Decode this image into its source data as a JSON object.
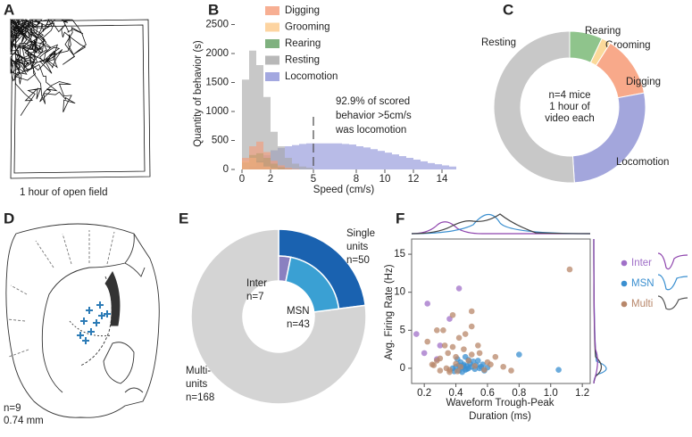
{
  "panels": {
    "a": {
      "letter": "A",
      "caption": "1 hour of open field"
    },
    "d": {
      "letter": "D",
      "lines": [
        "n=9",
        "0.74 mm"
      ]
    }
  },
  "chart_data": [
    {
      "type": "histogram",
      "letter": "B",
      "xlabel": "Speed (cm/s)",
      "ylabel": "Quantity of behavior (s)",
      "bins": [
        0,
        0.5,
        1,
        1.5,
        2,
        2.5,
        3,
        3.5,
        4,
        4.5,
        5,
        5.5,
        6,
        6.5,
        7,
        7.5,
        8,
        8.5,
        9,
        9.5,
        10,
        10.5,
        11,
        11.5,
        12,
        12.5,
        13,
        13.5,
        14,
        14.5,
        15
      ],
      "series": [
        {
          "name": "Digging",
          "color": "#f59b78",
          "values": [
            200,
            400,
            480,
            300,
            150,
            70,
            30,
            10,
            0,
            0,
            0,
            0,
            0,
            0,
            0,
            0,
            0,
            0,
            0,
            0,
            0,
            0,
            0,
            0,
            0,
            0,
            0,
            0,
            0,
            0
          ]
        },
        {
          "name": "Grooming",
          "color": "#fcc98a",
          "values": [
            150,
            200,
            120,
            50,
            20,
            0,
            0,
            0,
            0,
            0,
            0,
            0,
            0,
            0,
            0,
            0,
            0,
            0,
            0,
            0,
            0,
            0,
            0,
            0,
            0,
            0,
            0,
            0,
            0,
            0
          ]
        },
        {
          "name": "Rearing",
          "color": "#5f9e5f",
          "values": [
            120,
            250,
            280,
            200,
            100,
            40,
            10,
            0,
            0,
            0,
            0,
            0,
            0,
            0,
            0,
            0,
            0,
            0,
            0,
            0,
            0,
            0,
            0,
            0,
            0,
            0,
            0,
            0,
            0,
            0
          ]
        },
        {
          "name": "Resting",
          "color": "#a6a6a6",
          "values": [
            1550,
            2050,
            1800,
            1250,
            650,
            400,
            200,
            100,
            50,
            30,
            0,
            0,
            0,
            0,
            0,
            0,
            0,
            0,
            0,
            0,
            0,
            0,
            0,
            0,
            0,
            0,
            0,
            0,
            0,
            0
          ]
        },
        {
          "name": "Locomotion",
          "color": "#8c92d8",
          "values": [
            0,
            50,
            150,
            250,
            330,
            370,
            400,
            420,
            440,
            450,
            450,
            450,
            450,
            450,
            440,
            430,
            400,
            380,
            350,
            320,
            290,
            260,
            230,
            200,
            170,
            140,
            110,
            90,
            70,
            50
          ]
        }
      ],
      "xlim": [
        -0.5,
        15
      ],
      "ylim": [
        0,
        2600
      ],
      "xticks": [
        0,
        2,
        5,
        8,
        10,
        12,
        14
      ],
      "yticks": [
        0,
        500,
        1000,
        1500,
        2000,
        2500
      ],
      "vline": 5,
      "annotation": [
        "92.9% of scored",
        "behavior >5cm/s",
        "was locomotion"
      ]
    },
    {
      "type": "donut",
      "letter": "C",
      "categories": [
        "Rearing",
        "Grooming",
        "Digging",
        "Locomotion",
        "Resting"
      ],
      "values": [
        7,
        2,
        13,
        27,
        51
      ],
      "colors": [
        "#8fc48c",
        "#fbd99a",
        "#f8a98a",
        "#a3a6dc",
        "#c8c8c8"
      ],
      "center_text": [
        "n=4 mice",
        "1 hour of",
        "video each"
      ]
    },
    {
      "type": "nested-donut",
      "letter": "E",
      "categories_lines": [
        [
          "Single",
          "units"
        ],
        [
          "Multi-",
          "units"
        ]
      ],
      "values": [
        50,
        168
      ],
      "value_labels": [
        "n=50",
        "n=168"
      ],
      "colors": [
        "#1a62b0",
        "#d4d4d4"
      ],
      "inner": {
        "categories": [
          "Inter",
          "MSN"
        ],
        "values": [
          7,
          43
        ],
        "value_labels": [
          "n=7",
          "n=43"
        ],
        "colors": [
          "#8a80c0",
          "#3aa0d3"
        ]
      }
    },
    {
      "type": "scatter",
      "letter": "F",
      "xlabel": [
        "Waveform Trough-Peak",
        "Duration (ms)"
      ],
      "ylabel": "Avg. Firing Rate (Hz)",
      "xlim": [
        0.12,
        1.25
      ],
      "ylim": [
        -2,
        17
      ],
      "xticks": [
        0.2,
        0.4,
        0.6,
        0.8,
        {
          "value": 1,
          "label": "1.0"
        },
        1.2
      ],
      "yticks": [
        0,
        5,
        10,
        15
      ],
      "series": [
        {
          "name": "Inter",
          "color": "#a070c8",
          "x": [
            0.22,
            0.42,
            0.15,
            0.3,
            0.28,
            0.2,
            0.36
          ],
          "values": [
            8.5,
            10.5,
            4.5,
            3.0,
            1.2,
            2.0,
            6.5
          ]
        },
        {
          "name": "MSN",
          "color": "#3a8fd0",
          "x": [
            0.38,
            0.4,
            0.42,
            0.44,
            0.45,
            0.46,
            0.47,
            0.48,
            0.5,
            0.52,
            0.53,
            0.55,
            0.58,
            0.43,
            0.41,
            0.39,
            0.49,
            0.51,
            0.46,
            0.44,
            0.56,
            0.54,
            0.47,
            0.45,
            0.6,
            0.8,
            1.05,
            0.57,
            0.42,
            0.48
          ],
          "values": [
            0,
            0.2,
            -0.3,
            0.1,
            0.5,
            -0.2,
            0.3,
            0,
            0.2,
            -0.1,
            0.4,
            0,
            -0.3,
            0.8,
            1.2,
            -0.4,
            0.6,
            0.9,
            1.5,
            -0.5,
            0.2,
            1.0,
            -0.1,
            0.3,
            0.1,
            1.8,
            -0.2,
            0.5,
            0.4,
            1.1
          ]
        },
        {
          "name": "Multi",
          "color": "#b8876a",
          "x": [
            0.22,
            0.25,
            0.28,
            0.3,
            0.32,
            0.33,
            0.35,
            0.36,
            0.38,
            0.4,
            0.42,
            0.43,
            0.45,
            0.48,
            0.5,
            0.52,
            0.55,
            0.58,
            0.6,
            0.62,
            0.65,
            0.7,
            0.75,
            0.28,
            0.34,
            0.38,
            0.41,
            0.46,
            0.5,
            0.54,
            0.4,
            0.36,
            0.3,
            0.26,
            0.5,
            1.12
          ],
          "values": [
            3.5,
            0.5,
            1.0,
            -0.3,
            5.0,
            3.0,
            2.0,
            -0.5,
            7.0,
            1.5,
            4.0,
            0.2,
            2.5,
            1.0,
            7.5,
            0.3,
            2.0,
            -0.2,
            0.8,
            0.5,
            1.5,
            0.2,
            -0.3,
            5.0,
            0.0,
            2.8,
            -0.4,
            4.5,
            1.8,
            3.0,
            0.6,
            -0.2,
            1.3,
            0.4,
            5.5,
            13.0
          ]
        }
      ]
    }
  ]
}
